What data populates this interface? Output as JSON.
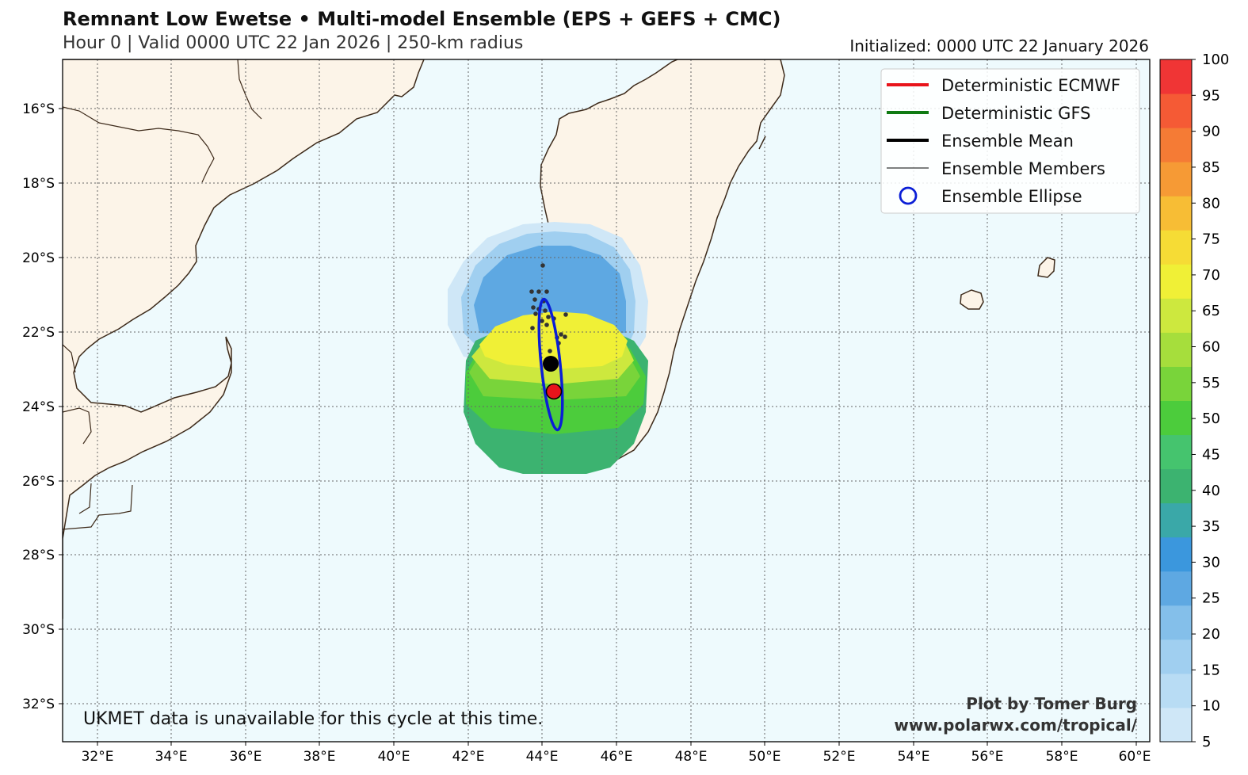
{
  "header": {
    "title": "Remnant Low Ewetse • Multi-model Ensemble (EPS + GEFS + CMC)",
    "subtitle": "Hour 0 | Valid 0000 UTC 22 Jan 2026 | 250-km radius",
    "initialized": "Initialized: 0000 UTC 22 January 2026"
  },
  "map": {
    "lon_labels": [
      "32°E",
      "34°E",
      "36°E",
      "38°E",
      "40°E",
      "42°E",
      "44°E",
      "46°E",
      "48°E",
      "50°E",
      "52°E",
      "54°E",
      "56°E",
      "58°E",
      "60°E"
    ],
    "lat_labels": [
      "16°S",
      "18°S",
      "20°S",
      "22°S",
      "24°S",
      "26°S",
      "28°S",
      "30°S",
      "32°S"
    ],
    "colors": {
      "ocean": "#eefafd",
      "land": "#fcf4e8",
      "coast": "#3d2a1a",
      "grid": "#666666"
    }
  },
  "legend": {
    "items": [
      {
        "label": "Deterministic ECMWF",
        "color": "#e8141b",
        "style": "line"
      },
      {
        "label": "Deterministic GFS",
        "color": "#0f7a12",
        "style": "line"
      },
      {
        "label": "Ensemble Mean",
        "color": "#000000",
        "style": "line"
      },
      {
        "label": "Ensemble Members",
        "color": "#000000",
        "style": "thin-line"
      },
      {
        "label": "Ensemble Ellipse",
        "color": "#0a1ed6",
        "style": "circle"
      }
    ]
  },
  "colorbar": {
    "labels": [
      "5",
      "10",
      "15",
      "20",
      "25",
      "30",
      "35",
      "40",
      "45",
      "50",
      "55",
      "60",
      "65",
      "70",
      "75",
      "80",
      "85",
      "90",
      "95",
      "100"
    ],
    "colors": [
      "#cfe7f7",
      "#b8dcf4",
      "#a0cff0",
      "#84bfea",
      "#5ea8e2",
      "#3b97dd",
      "#3aa8a8",
      "#3cb370",
      "#45c46e",
      "#4ccc3c",
      "#79d43a",
      "#a6de3c",
      "#cde83e",
      "#f0f036",
      "#f6dc35",
      "#f7bd35",
      "#f69a35",
      "#f57b35",
      "#f55a35",
      "#f03535"
    ]
  },
  "notes": {
    "ukmet": "UKMET data is unavailable for this cycle at this time.",
    "credit_line1": "Plot by Tomer Burg",
    "credit_line2": "www.polarwx.com/tropical/"
  },
  "markers": {
    "ensemble_mean": {
      "lon": 44.2,
      "lat": -22.85,
      "color": "#000000"
    },
    "ecmwf": {
      "lon": 44.3,
      "lat": -23.6,
      "color": "#e8141b"
    }
  }
}
